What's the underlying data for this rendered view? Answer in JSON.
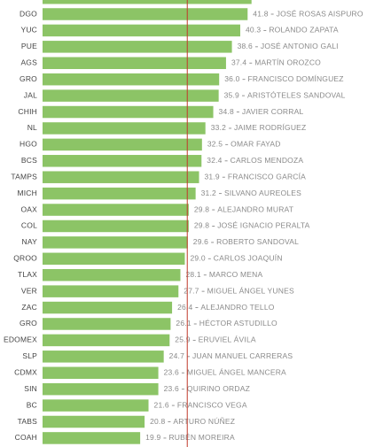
{
  "chart_data": {
    "type": "bar",
    "orientation": "horizontal",
    "color": "#8cc466",
    "reference_color": "#c0392b",
    "reference_value": 29.5,
    "xlim": [
      0,
      69.4
    ],
    "categories": [
      "DGO",
      "YUC",
      "PUE",
      "AGS",
      "GRO",
      "JAL",
      "CHIH",
      "NL",
      "HGO",
      "BCS",
      "TAMPS",
      "MICH",
      "OAX",
      "COL",
      "NAY",
      "QROO",
      "TLAX",
      "VER",
      "ZAC",
      "GRO",
      "EDOMEX",
      "SLP",
      "CDMX",
      "SIN",
      "BC",
      "TABS",
      "COAH"
    ],
    "values": [
      41.8,
      40.3,
      38.6,
      37.4,
      36.0,
      35.9,
      34.8,
      33.2,
      32.5,
      32.4,
      31.9,
      31.2,
      29.8,
      29.8,
      29.6,
      29.0,
      28.1,
      27.7,
      26.4,
      26.1,
      25.9,
      24.7,
      23.6,
      23.6,
      21.6,
      20.8,
      19.9
    ],
    "value_labels": [
      "41.8",
      "40.3",
      "38.6",
      "37.4",
      "36.0",
      "35.9",
      "34.8",
      "33.2",
      "32.5",
      "32.4",
      "31.9",
      "31.2",
      "29.8",
      "29.8",
      "29.6",
      "29.0",
      "28.1",
      "27.7",
      "26.4",
      "26.1",
      "25.9",
      "24.7",
      "23.6",
      "23.6",
      "21.6",
      "20.8",
      "19.9"
    ],
    "names": [
      "JOSÉ ROSAS AISPURO",
      "ROLANDO ZAPATA",
      "JOSÉ ANTONIO GALI",
      "MARTÍN OROZCO",
      "FRANCISCO DOMÍNGUEZ",
      "ARISTÓTELES SANDOVAL",
      "JAVIER CORRAL",
      "JAIME RODRÍGUEZ",
      "OMAR FAYAD",
      "CARLOS MENDOZA",
      "FRANCISCO GARCÍA",
      "SILVANO AUREOLES",
      "ALEJANDRO MURAT",
      "JOSÉ IGNACIO PERALTA",
      "ROBERTO SANDOVAL",
      "CARLOS JOAQUÍN",
      "MARCO MENA",
      "MIGUEL ÁNGEL YUNES",
      "ALEJANDRO TELLO",
      "HÉCTOR ASTUDILLO",
      "ERUVIEL ÁVILA",
      "JUAN MANUEL CARRERAS",
      "MIGUEL ÁNGEL MANCERA",
      "QUIRINO ORDAZ",
      "FRANCISCO VEGA",
      "ARTURO NÚÑEZ",
      "RUBÉN MOREIRA"
    ]
  }
}
